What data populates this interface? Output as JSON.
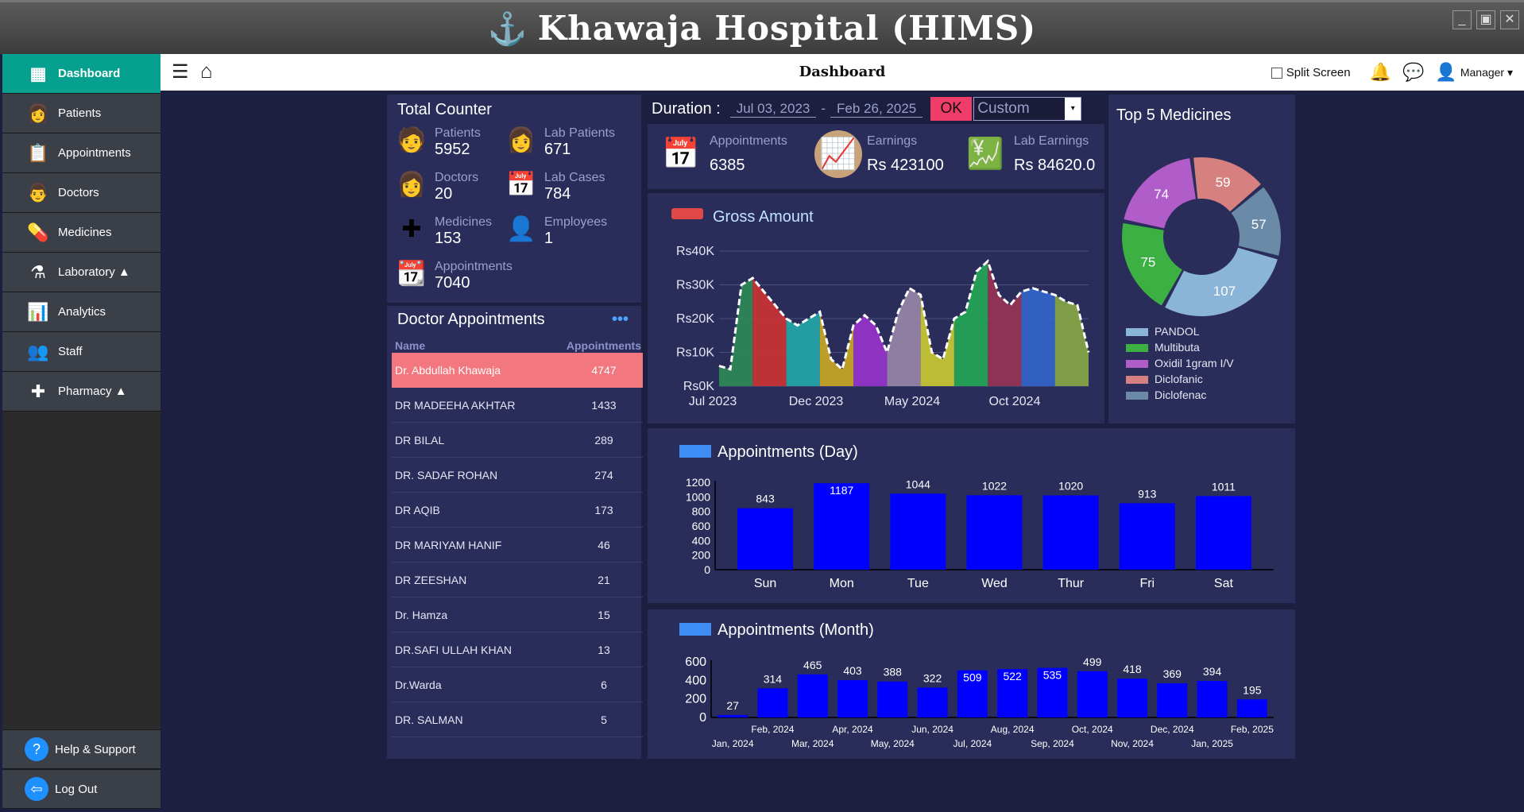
{
  "app": {
    "title": "Khawaja Hospital (HIMS)",
    "logo_glyph": "⚓"
  },
  "window_buttons": [
    "minimize",
    "restore",
    "close"
  ],
  "sidebar": {
    "items": [
      {
        "label": "Dashboard",
        "icon": "dashboard-icon",
        "glyph": "▦"
      },
      {
        "label": "Patients",
        "icon": "patient-icon",
        "glyph": "👩"
      },
      {
        "label": "Appointments",
        "icon": "clipboard-icon",
        "glyph": "📋"
      },
      {
        "label": "Doctors",
        "icon": "doctor-icon",
        "glyph": "👨"
      },
      {
        "label": "Medicines",
        "icon": "pill-icon",
        "glyph": "💊"
      },
      {
        "label": "Laboratory ▲",
        "icon": "lab-flask-icon",
        "glyph": "⚗"
      },
      {
        "label": "Analytics",
        "icon": "bar-chart-icon",
        "glyph": "📊"
      },
      {
        "label": "Staff",
        "icon": "staff-group-icon",
        "glyph": "👥"
      },
      {
        "label": "Pharmacy ▲",
        "icon": "pharmacy-cross-icon",
        "glyph": "✚"
      }
    ],
    "bottom": [
      {
        "label": "Help & Support",
        "icon": "help-icon",
        "glyph": "?"
      },
      {
        "label": "Log Out",
        "icon": "logout-icon",
        "glyph": "⇦"
      }
    ]
  },
  "toolbar": {
    "menu_glyph": "☰",
    "home_glyph": "⌂",
    "page_title": "Dashboard",
    "split_screen": "Split Screen",
    "user": "Manager ▾"
  },
  "total_counter": {
    "title": "Total Counter",
    "items": [
      {
        "label": "Patients",
        "value": "5952",
        "icon": "patient-add-icon",
        "glyph": "🧑"
      },
      {
        "label": "Lab Patients",
        "value": "671",
        "icon": "lab-patient-icon",
        "glyph": "👩"
      },
      {
        "label": "Doctors",
        "value": "20",
        "icon": "nurse-icon",
        "glyph": "👩"
      },
      {
        "label": "Lab Cases",
        "value": "784",
        "icon": "lab-case-icon",
        "glyph": "📅"
      },
      {
        "label": "Medicines",
        "value": "153",
        "icon": "medicine-icon",
        "glyph": "✚"
      },
      {
        "label": "Employees",
        "value": "1",
        "icon": "employee-icon",
        "glyph": "👤"
      },
      {
        "label": "Appointments",
        "value": "7040",
        "icon": "calendar-check-icon",
        "glyph": "📆"
      }
    ]
  },
  "doctor_appointments": {
    "title": "Doctor Appointments",
    "more": "•••",
    "columns": [
      "Name",
      "Appointments"
    ],
    "rows": [
      {
        "name": "Dr. Abdullah Khawaja",
        "count": "4747"
      },
      {
        "name": "DR MADEEHA AKHTAR",
        "count": "1433"
      },
      {
        "name": "DR BILAL",
        "count": "289"
      },
      {
        "name": "DR. SADAF ROHAN",
        "count": "274"
      },
      {
        "name": "DR AQIB",
        "count": "173"
      },
      {
        "name": "DR MARIYAM HANIF",
        "count": "46"
      },
      {
        "name": "DR ZEESHAN",
        "count": "21"
      },
      {
        "name": "Dr. Hamza",
        "count": "15"
      },
      {
        "name": "DR.SAFI ULLAH KHAN",
        "count": "13"
      },
      {
        "name": "Dr.Warda",
        "count": "6"
      },
      {
        "name": "DR. SALMAN",
        "count": "5"
      }
    ]
  },
  "duration": {
    "label": "Duration :",
    "from": "Jul 03, 2023",
    "sep": "-",
    "to": "Feb 26, 2025",
    "ok": "OK",
    "range": "Custom",
    "arrow": "▾"
  },
  "stats": [
    {
      "label": "Appointments",
      "value": "6385",
      "icon": "calendar-icon",
      "glyph": "📅"
    },
    {
      "label": "Earnings",
      "value": "Rs 423100",
      "icon": "earnings-chart-icon",
      "glyph": "📈"
    },
    {
      "label": "Lab Earnings",
      "value": "Rs 84620.0",
      "icon": "profit-icon",
      "glyph": "💹"
    }
  ],
  "colors": {
    "accent": "#05a08e",
    "panel": "#2a2d5a",
    "background": "#1c1f3f",
    "bar": "#0000ff",
    "highlight_row": "#f2777f",
    "ok_button": "#f03c68"
  },
  "chart_data": [
    {
      "type": "area",
      "title": "Gross Amount",
      "x_ticks": [
        "Jul 2023",
        "Dec 2023",
        "May 2024",
        "Oct 2024"
      ],
      "y_ticks": [
        "Rs0K",
        "Rs10K",
        "Rs20K",
        "Rs30K",
        "Rs40K"
      ],
      "ylim": [
        0,
        40000
      ],
      "values": [
        6000,
        5000,
        30000,
        32000,
        28000,
        24000,
        20000,
        18000,
        20000,
        22000,
        8000,
        5000,
        18000,
        21000,
        18000,
        10000,
        22000,
        29000,
        27000,
        10000,
        8000,
        20000,
        22000,
        34000,
        37000,
        27000,
        24000,
        28000,
        29000,
        28000,
        27000,
        25000,
        24000,
        10000
      ],
      "colors": [
        "#2e8b57",
        "#cc3333",
        "#22aaaa",
        "#ccaa22",
        "#9933cc",
        "#9988aa",
        "#cccc33",
        "#22aa55",
        "#993355",
        "#3366cc",
        "#88aa44"
      ]
    },
    {
      "type": "pie",
      "title": "Top 5 Medicines",
      "legend": "bottom",
      "slices": [
        {
          "label": "PANDOL",
          "value": 107,
          "color": "#8ab4d8"
        },
        {
          "label": "Multibuta",
          "value": 75,
          "color": "#3cb043"
        },
        {
          "label": "Oxidil 1gram I/V",
          "value": 74,
          "color": "#b05cc9"
        },
        {
          "label": "Diclofanic",
          "value": 59,
          "color": "#d68080"
        },
        {
          "label": "Diclofenac",
          "value": 57,
          "color": "#6a8aa8"
        }
      ]
    },
    {
      "type": "bar",
      "title": "Appointments (Day)",
      "categories": [
        "Sun",
        "Mon",
        "Tue",
        "Wed",
        "Thur",
        "Fri",
        "Sat"
      ],
      "values": [
        843,
        1187,
        1044,
        1022,
        1020,
        913,
        1011
      ],
      "y_ticks": [
        "0",
        "200",
        "400",
        "600",
        "800",
        "1000",
        "1200"
      ],
      "ylim": [
        0,
        1200
      ]
    },
    {
      "type": "bar",
      "title": "Appointments (Month)",
      "categories": [
        "Jan, 2024",
        "Feb, 2024",
        "Mar, 2024",
        "Apr, 2024",
        "May, 2024",
        "Jun, 2024",
        "Jul, 2024",
        "Aug, 2024",
        "Sep, 2024",
        "Oct, 2024",
        "Nov, 2024",
        "Dec, 2024",
        "Jan, 2025",
        "Feb, 2025"
      ],
      "values": [
        27,
        314,
        465,
        403,
        388,
        322,
        509,
        522,
        535,
        499,
        418,
        369,
        394,
        195
      ],
      "y_ticks": [
        "0",
        "200",
        "400",
        "600"
      ],
      "ylim": [
        0,
        600
      ]
    }
  ]
}
